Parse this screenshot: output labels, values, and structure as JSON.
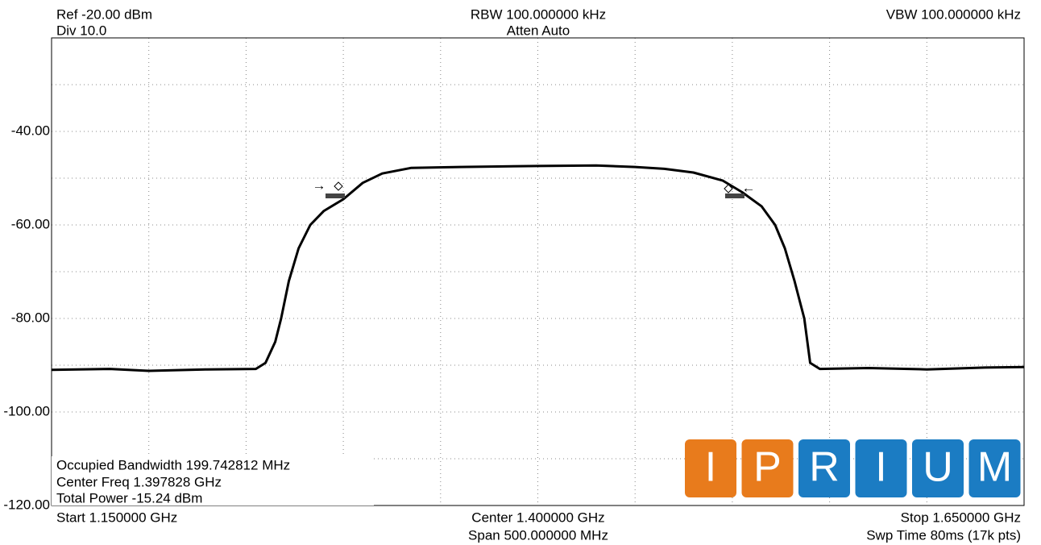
{
  "chart_data": {
    "type": "line",
    "header": {
      "ref": "Ref -20.00 dBm",
      "div": "Div 10.0",
      "rbw": "RBW 100.000000 kHz",
      "atten": "Atten Auto",
      "vbw": "VBW 100.000000 kHz"
    },
    "footer": {
      "start": "Start 1.150000 GHz",
      "center": "Center 1.400000 GHz",
      "span": "Span 500.000000 MHz",
      "stop": "Stop 1.650000 GHz",
      "sweep": "Swp Time 80ms (17k pts)"
    },
    "annotations": [
      "Occupied Bandwidth 199.742812 MHz",
      "Center Freq 1.397828 GHz",
      "Total Power -15.24 dBm"
    ],
    "logo": [
      "I",
      "P",
      "R",
      "I",
      "U",
      "M"
    ],
    "x": [
      1.15,
      1.18,
      1.2,
      1.23,
      1.255,
      1.26,
      1.265,
      1.268,
      1.272,
      1.277,
      1.283,
      1.29,
      1.3,
      1.31,
      1.32,
      1.335,
      1.36,
      1.4,
      1.43,
      1.45,
      1.465,
      1.48,
      1.495,
      1.505,
      1.515,
      1.522,
      1.527,
      1.532,
      1.537,
      1.54,
      1.545,
      1.57,
      1.6,
      1.63,
      1.65
    ],
    "series": [
      {
        "color": "#000000",
        "values": [
          -91,
          -90.8,
          -91.2,
          -90.9,
          -90.8,
          -89.5,
          -85,
          -80,
          -72,
          -65,
          -60,
          -57,
          -54.5,
          -51,
          -49,
          -47.8,
          -47.6,
          -47.4,
          -47.3,
          -47.6,
          -48,
          -48.8,
          -50.5,
          -53,
          -56,
          -60,
          -65,
          -72,
          -80,
          -89.5,
          -90.8,
          -90.6,
          -90.9,
          -90.5,
          -90.4
        ]
      }
    ],
    "xlim": [
      1.15,
      1.65
    ],
    "ylim": [
      -120,
      -20
    ],
    "yticks": [
      {
        "value": -40,
        "label": "-40.00"
      },
      {
        "value": -60,
        "label": "-60.00"
      },
      {
        "value": -80,
        "label": "-80.00"
      },
      {
        "value": -100,
        "label": "-100.00"
      },
      {
        "value": -120,
        "label": "-120.00"
      }
    ],
    "ygrid": [
      -30,
      -40,
      -50,
      -60,
      -70,
      -80,
      -90,
      -100,
      -110
    ],
    "xgrid": [
      1.2,
      1.25,
      1.3,
      1.35,
      1.4,
      1.45,
      1.5,
      1.55,
      1.6
    ],
    "grid": true
  }
}
